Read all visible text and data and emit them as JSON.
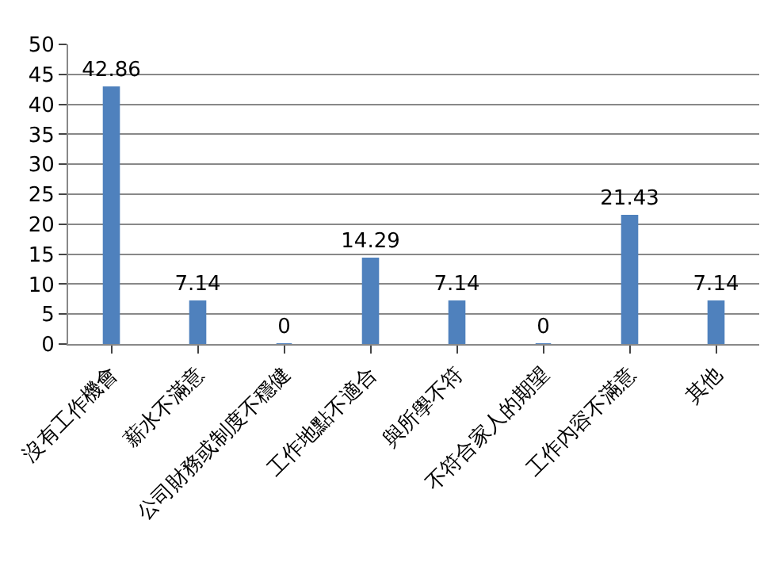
{
  "chart_data": {
    "type": "bar",
    "categories": [
      "沒有工作機會",
      "薪水不滿意",
      "公司財務或制度不穩健",
      "工作地點不適合",
      "與所學不符",
      "不符合家人的期望",
      "工作內容不滿意",
      "其他"
    ],
    "values": [
      42.86,
      7.14,
      0,
      14.29,
      7.14,
      0,
      21.43,
      7.14
    ],
    "color": "#4f81bd",
    "ylim": [
      0,
      50
    ],
    "yticks": [
      0,
      5,
      10,
      15,
      20,
      25,
      30,
      35,
      40,
      45,
      50
    ],
    "grid": "y",
    "data_labels": true,
    "legend": false
  }
}
